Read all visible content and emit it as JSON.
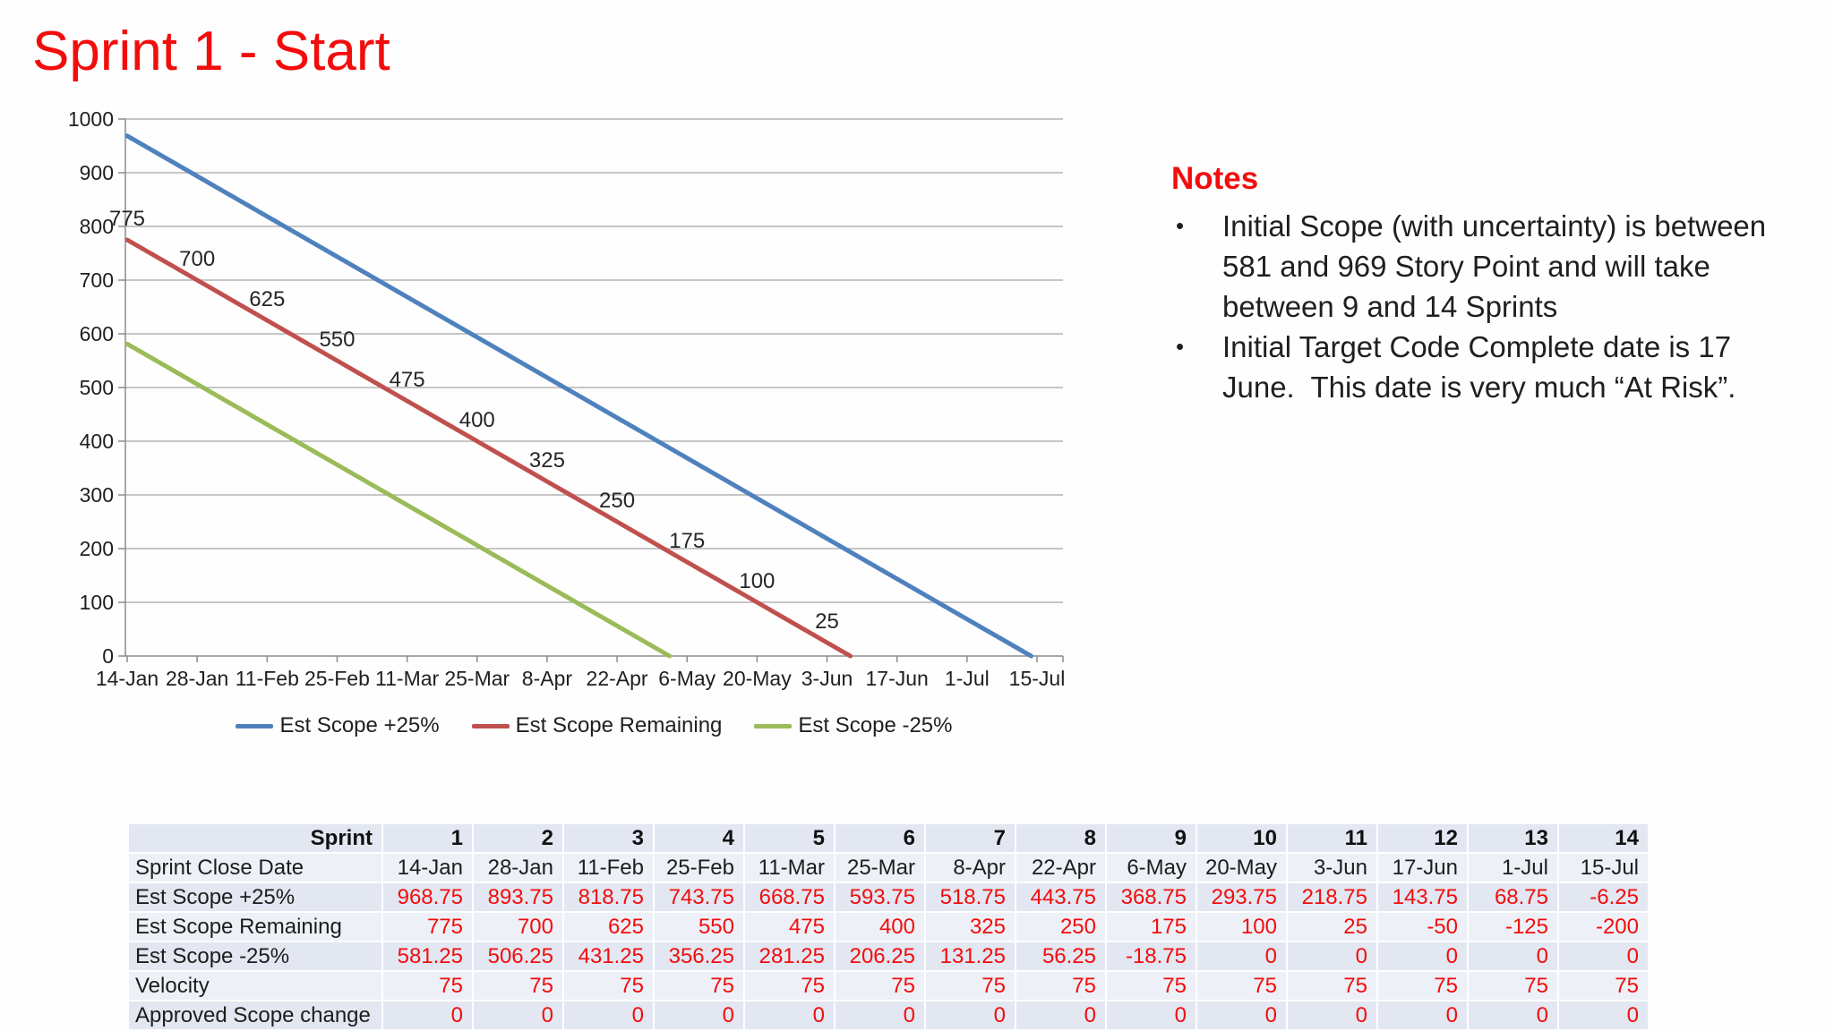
{
  "slide": {
    "title": "Sprint 1 - Start"
  },
  "colors": {
    "accent_red": "#f20d0d",
    "text_dark": "#1f1f1f",
    "grid_line": "#b3b3b3",
    "axis_line": "#8c8c8c",
    "row_dark": "#e2e7f1",
    "row_light": "#edf0f6",
    "line_blue": "#4f81bd",
    "line_red": "#c0504d",
    "line_green": "#9bbb59"
  },
  "chart_data": {
    "type": "line",
    "title": "",
    "xlabel": "",
    "ylabel": "",
    "categories": [
      "14-Jan",
      "28-Jan",
      "11-Feb",
      "25-Feb",
      "11-Mar",
      "25-Mar",
      "8-Apr",
      "22-Apr",
      "6-May",
      "20-May",
      "3-Jun",
      "17-Jun",
      "1-Jul",
      "15-Jul"
    ],
    "series": [
      {
        "name": "Est Scope +25%",
        "color": "#4f81bd",
        "data_labels": false,
        "values": [
          968.75,
          893.75,
          818.75,
          743.75,
          668.75,
          593.75,
          518.75,
          443.75,
          368.75,
          293.75,
          218.75,
          143.75,
          68.75,
          -6.25
        ]
      },
      {
        "name": "Est Scope Remaining",
        "color": "#c0504d",
        "data_labels": true,
        "values": [
          775,
          700,
          625,
          550,
          475,
          400,
          325,
          250,
          175,
          100,
          25,
          -50,
          -125,
          -200
        ]
      },
      {
        "name": "Est Scope -25%",
        "color": "#9bbb59",
        "data_labels": false,
        "values": [
          581.25,
          506.25,
          431.25,
          356.25,
          281.25,
          206.25,
          131.25,
          56.25,
          -18.75,
          0,
          0,
          0,
          0,
          0
        ]
      }
    ],
    "ylim": [
      0,
      1000
    ],
    "ytick_step": 100,
    "grid": "horizontal",
    "legend_position": "bottom",
    "clip_at_zero": true
  },
  "notes": {
    "heading": "Notes",
    "bullets": [
      {
        "lines": [
          "Initial Scope (with uncertainty) is between",
          "581 and 969 Story Point and will take",
          "between 9 and 14 Sprints"
        ]
      },
      {
        "lines": [
          "Initial Target Code Complete date is 17",
          "June.  This date is very much “At Risk”."
        ]
      }
    ]
  },
  "table": {
    "header": {
      "label": "Sprint",
      "columns": [
        "1",
        "2",
        "3",
        "4",
        "5",
        "6",
        "7",
        "8",
        "9",
        "10",
        "11",
        "12",
        "13",
        "14"
      ]
    },
    "rows": [
      {
        "label": "Sprint Close Date",
        "style": "date",
        "values": [
          "14-Jan",
          "28-Jan",
          "11-Feb",
          "25-Feb",
          "11-Mar",
          "25-Mar",
          "8-Apr",
          "22-Apr",
          "6-May",
          "20-May",
          "3-Jun",
          "17-Jun",
          "1-Jul",
          "15-Jul"
        ]
      },
      {
        "label": "Est Scope +25%",
        "style": "value",
        "values": [
          "968.75",
          "893.75",
          "818.75",
          "743.75",
          "668.75",
          "593.75",
          "518.75",
          "443.75",
          "368.75",
          "293.75",
          "218.75",
          "143.75",
          "68.75",
          "-6.25"
        ]
      },
      {
        "label": "Est Scope Remaining",
        "style": "value",
        "values": [
          "775",
          "700",
          "625",
          "550",
          "475",
          "400",
          "325",
          "250",
          "175",
          "100",
          "25",
          "-50",
          "-125",
          "-200"
        ]
      },
      {
        "label": "Est Scope -25%",
        "style": "value",
        "values": [
          "581.25",
          "506.25",
          "431.25",
          "356.25",
          "281.25",
          "206.25",
          "131.25",
          "56.25",
          "-18.75",
          "0",
          "0",
          "0",
          "0",
          "0"
        ]
      },
      {
        "label": "Velocity",
        "style": "value",
        "values": [
          "75",
          "75",
          "75",
          "75",
          "75",
          "75",
          "75",
          "75",
          "75",
          "75",
          "75",
          "75",
          "75",
          "75"
        ]
      },
      {
        "label": "Approved Scope change",
        "style": "value",
        "values": [
          "0",
          "0",
          "0",
          "0",
          "0",
          "0",
          "0",
          "0",
          "0",
          "0",
          "0",
          "0",
          "0",
          "0"
        ]
      }
    ]
  }
}
